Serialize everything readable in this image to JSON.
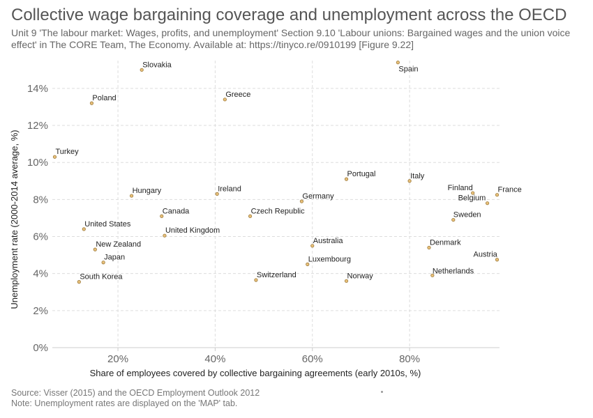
{
  "header": {
    "title": "Collective wage bargaining coverage and unemployment across the OECD",
    "subtitle": "Unit 9 'The labour market: Wages, profits, and unemployment' Section 9.10 'Labour unions: Bargained wages and the union voice effect' in The CORE Team, The Economy. Available at: https://tinyco.re/0910199 [Figure 9.22]"
  },
  "footer": {
    "source": "Source: Visser (2015) and the OECD Employment Outlook 2012",
    "note": "Note: Unemployment rates are displayed on the 'MAP' tab."
  },
  "colors": {
    "point_fill": "#e8c07a",
    "point_stroke": "#9c7a3c",
    "grid": "#dddddd",
    "axis": "#cccccc"
  },
  "chart_data": {
    "type": "scatter",
    "xlabel": "Share of employees covered by collective bargaining agreements (early 2010s, %)",
    "ylabel": "Unemployment rate (2000-2014 average, %)",
    "xlim": [
      6.5,
      98.5
    ],
    "ylim": [
      0,
      15.5
    ],
    "x_ticks": [
      20,
      40,
      60,
      80
    ],
    "x_tick_labels": [
      "20%",
      "40%",
      "60%",
      "80%"
    ],
    "y_ticks": [
      0,
      2,
      4,
      6,
      8,
      10,
      12,
      14
    ],
    "y_tick_labels": [
      "0%",
      "2%",
      "4%",
      "6%",
      "8%",
      "10%",
      "12%",
      "14%"
    ],
    "grid": true,
    "points": [
      {
        "label": "Slovakia",
        "x": 24.9,
        "y": 15.0
      },
      {
        "label": "Spain",
        "x": 77.6,
        "y": 15.4
      },
      {
        "label": "Poland",
        "x": 14.6,
        "y": 13.2
      },
      {
        "label": "Greece",
        "x": 42.0,
        "y": 13.4
      },
      {
        "label": "Turkey",
        "x": 7.0,
        "y": 10.3
      },
      {
        "label": "Portugal",
        "x": 67.0,
        "y": 9.1
      },
      {
        "label": "Italy",
        "x": 80.0,
        "y": 9.0
      },
      {
        "label": "Hungary",
        "x": 22.8,
        "y": 8.2
      },
      {
        "label": "Ireland",
        "x": 40.4,
        "y": 8.3
      },
      {
        "label": "Germany",
        "x": 57.8,
        "y": 7.9
      },
      {
        "label": "Finland",
        "x": 93.0,
        "y": 8.35
      },
      {
        "label": "France",
        "x": 98.0,
        "y": 8.25
      },
      {
        "label": "Belgium",
        "x": 96.0,
        "y": 7.8
      },
      {
        "label": "Canada",
        "x": 29.0,
        "y": 7.1
      },
      {
        "label": "Czech Republic",
        "x": 47.2,
        "y": 7.1
      },
      {
        "label": "Sweden",
        "x": 89.0,
        "y": 6.9
      },
      {
        "label": "United States",
        "x": 13.0,
        "y": 6.4
      },
      {
        "label": "United Kingdom",
        "x": 29.6,
        "y": 6.05
      },
      {
        "label": "New Zealand",
        "x": 15.3,
        "y": 5.3
      },
      {
        "label": "Australia",
        "x": 60.0,
        "y": 5.5
      },
      {
        "label": "Denmark",
        "x": 84.0,
        "y": 5.4
      },
      {
        "label": "Japan",
        "x": 17.0,
        "y": 4.6
      },
      {
        "label": "Luxembourg",
        "x": 59.0,
        "y": 4.5
      },
      {
        "label": "Austria",
        "x": 98.0,
        "y": 4.75
      },
      {
        "label": "Netherlands",
        "x": 84.7,
        "y": 3.9
      },
      {
        "label": "South Korea",
        "x": 12.0,
        "y": 3.55
      },
      {
        "label": "Switzerland",
        "x": 48.4,
        "y": 3.65
      },
      {
        "label": "Norway",
        "x": 67.0,
        "y": 3.6
      }
    ]
  }
}
